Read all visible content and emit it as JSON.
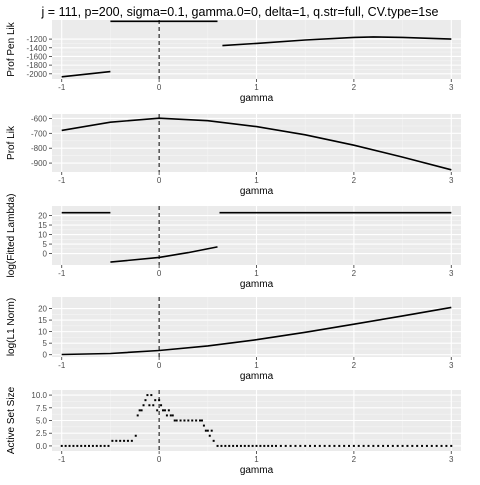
{
  "title": "j = 111, p=200, sigma=0.1, gamma.0=0, delta=1, q.str=full, CV.type=1se",
  "colors": {
    "panel": "#ebebeb",
    "grid_major": "#ffffff",
    "grid_minor": "#f5f5f5",
    "line": "#000000",
    "text": "#4d4d4d"
  },
  "chart_data": [
    {
      "type": "line",
      "xlabel": "gamma",
      "ylabel": "Prof Pen Lik",
      "xlim": [
        -1.1,
        3.1
      ],
      "ylim": [
        -2120,
        -760
      ],
      "xticks": [
        -1,
        0,
        1,
        2,
        3
      ],
      "yticks": [
        -2000,
        -1800,
        -1600,
        -1400,
        -1200
      ],
      "vline": 0,
      "series": [
        {
          "x": [
            -1,
            -0.5
          ],
          "y": [
            -2070,
            -1950
          ]
        },
        {
          "x": [
            -0.5,
            0.6
          ],
          "y": [
            -790,
            -790
          ]
        },
        {
          "x": [
            0.65,
            1.0,
            1.5,
            2.0,
            2.2,
            2.5,
            3.0
          ],
          "y": [
            -1350,
            -1300,
            -1220,
            -1160,
            -1150,
            -1160,
            -1200
          ]
        }
      ]
    },
    {
      "type": "line",
      "xlabel": "gamma",
      "ylabel": "Prof Lik",
      "xlim": [
        -1.1,
        3.1
      ],
      "ylim": [
        -960,
        -570
      ],
      "xticks": [
        -1,
        0,
        1,
        2,
        3
      ],
      "yticks": [
        -600,
        -700,
        -800,
        -900
      ],
      "vline": 0,
      "series": [
        {
          "x": [
            -1,
            -0.5,
            0,
            0.5,
            1.0,
            1.5,
            2.0,
            2.5,
            3.0
          ],
          "y": [
            -680,
            -625,
            -598,
            -615,
            -655,
            -710,
            -780,
            -860,
            -945
          ]
        }
      ]
    },
    {
      "type": "line",
      "xlabel": "gamma",
      "ylabel": "log(Fitted Lambda)",
      "xlim": [
        -1.1,
        3.1
      ],
      "ylim": [
        -6,
        25
      ],
      "xticks": [
        -1,
        0,
        1,
        2,
        3
      ],
      "yticks": [
        20,
        15,
        10,
        5,
        0
      ],
      "vline": 0,
      "series": [
        {
          "x": [
            -1,
            -0.5
          ],
          "y": [
            21.5,
            21.5
          ]
        },
        {
          "x": [
            -0.5,
            0,
            0.3,
            0.6
          ],
          "y": [
            -4.5,
            -2,
            0.5,
            3.5
          ]
        },
        {
          "x": [
            0.62,
            3.0
          ],
          "y": [
            21.5,
            21.5
          ]
        }
      ]
    },
    {
      "type": "line",
      "xlabel": "gamma",
      "ylabel": "log(L1 Norm)",
      "xlim": [
        -1.1,
        3.1
      ],
      "ylim": [
        -1,
        25
      ],
      "xticks": [
        -1,
        0,
        1,
        2,
        3
      ],
      "yticks": [
        20,
        15,
        10,
        5,
        0
      ],
      "vline": 0,
      "series": [
        {
          "x": [
            -1,
            -0.5,
            0,
            0.5,
            1.0,
            1.5,
            2.0,
            2.5,
            3.0
          ],
          "y": [
            0.1,
            0.5,
            1.8,
            3.8,
            6.5,
            9.7,
            13.2,
            16.8,
            20.5
          ]
        }
      ]
    },
    {
      "type": "scatter",
      "xlabel": "gamma",
      "ylabel": "Active Set Size",
      "xlim": [
        -1.1,
        3.1
      ],
      "ylim": [
        -1,
        11
      ],
      "xticks": [
        -1,
        0,
        1,
        2,
        3
      ],
      "yticks": [
        10.0,
        7.5,
        5.0,
        2.5,
        0.0
      ],
      "yticklabels": [
        "10.0",
        "7.5",
        "5.0",
        "2.5",
        "0.0"
      ],
      "vline": 0,
      "series": [
        {
          "x": [
            -1.0,
            -0.96,
            -0.92,
            -0.88,
            -0.84,
            -0.8,
            -0.76,
            -0.72,
            -0.68,
            -0.64,
            -0.6,
            -0.56,
            -0.52,
            -0.48,
            -0.44,
            -0.4,
            -0.36,
            -0.32,
            -0.28,
            -0.24,
            -0.22,
            -0.2,
            -0.18,
            -0.16,
            -0.14,
            -0.12,
            -0.1,
            -0.08,
            -0.06,
            -0.04,
            -0.02,
            0.0,
            0.02,
            0.04,
            0.06,
            0.08,
            0.1,
            0.12,
            0.14,
            0.16,
            0.18,
            0.22,
            0.26,
            0.3,
            0.34,
            0.38,
            0.42,
            0.44,
            0.46,
            0.48,
            0.5,
            0.52,
            0.54,
            0.56,
            0.6,
            0.64,
            0.68,
            0.72,
            0.76,
            0.8,
            0.84,
            0.88,
            0.92,
            0.96,
            1.0,
            1.04,
            1.08,
            1.12,
            1.16,
            1.2,
            1.25,
            1.3,
            1.35,
            1.4,
            1.45,
            1.5,
            1.55,
            1.6,
            1.65,
            1.7,
            1.75,
            1.8,
            1.85,
            1.9,
            1.95,
            2.0,
            2.05,
            2.1,
            2.15,
            2.2,
            2.25,
            2.3,
            2.35,
            2.4,
            2.45,
            2.5,
            2.55,
            2.6,
            2.65,
            2.7,
            2.75,
            2.8,
            2.85,
            2.9,
            2.95,
            3.0
          ],
          "y": [
            0,
            0,
            0,
            0,
            0,
            0,
            0,
            0,
            0,
            0,
            0,
            0,
            0,
            1,
            1,
            1,
            1,
            1,
            1,
            2,
            6,
            7,
            7,
            8,
            9,
            10,
            8,
            10,
            8,
            9,
            7,
            9,
            8,
            7,
            7,
            6,
            7,
            6,
            6,
            5,
            5,
            5,
            5,
            5,
            5,
            5,
            5,
            5,
            4,
            3,
            3,
            2,
            3,
            1,
            0,
            0,
            0,
            0,
            0,
            0,
            0,
            0,
            0,
            0,
            0,
            0,
            0,
            0,
            0,
            0,
            0,
            0,
            0,
            0,
            0,
            0,
            0,
            0,
            0,
            0,
            0,
            0,
            0,
            0,
            0,
            0,
            0,
            0,
            0,
            0,
            0,
            0,
            0,
            0,
            0,
            0,
            0,
            0,
            0,
            0,
            0,
            0,
            0,
            0,
            0,
            0
          ]
        }
      ]
    }
  ]
}
